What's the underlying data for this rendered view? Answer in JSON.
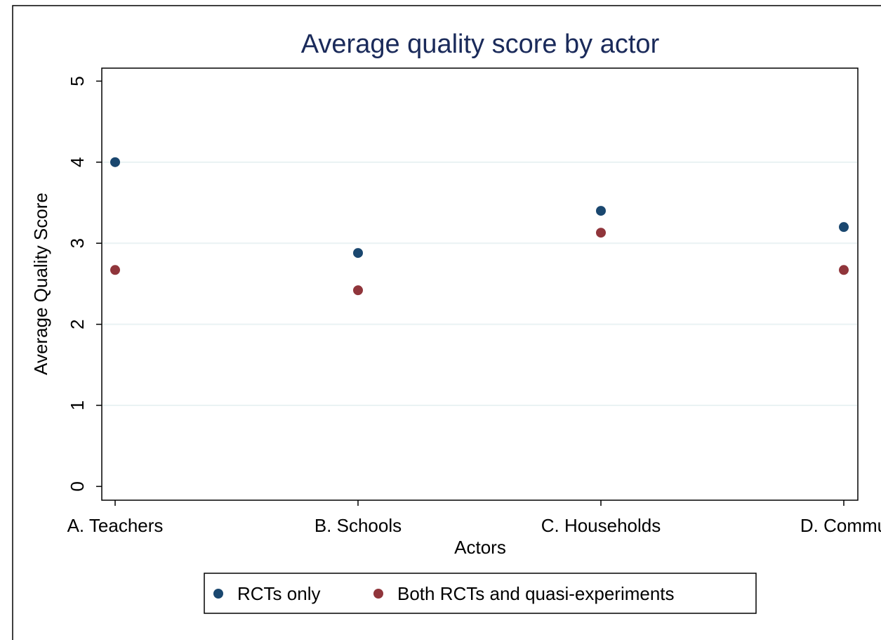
{
  "chart_data": {
    "type": "scatter",
    "title": "Average quality score by actor",
    "xlabel": "Actors",
    "ylabel": "Average Quality Score",
    "categories": [
      "A. Teachers",
      "B. Schools",
      "C. Households",
      "D. Commu"
    ],
    "series": [
      {
        "name": "RCTs only",
        "color": "#1a476f",
        "values": [
          4.0,
          2.88,
          3.4,
          3.2
        ]
      },
      {
        "name": "Both RCTs and quasi-experiments",
        "color": "#90353b",
        "values": [
          2.67,
          2.42,
          3.13,
          2.67
        ]
      }
    ],
    "ylim": [
      -0.17,
      5.16
    ],
    "yticks": [
      0,
      1,
      2,
      3,
      4,
      5
    ],
    "grid": true,
    "legend": "bottom"
  }
}
